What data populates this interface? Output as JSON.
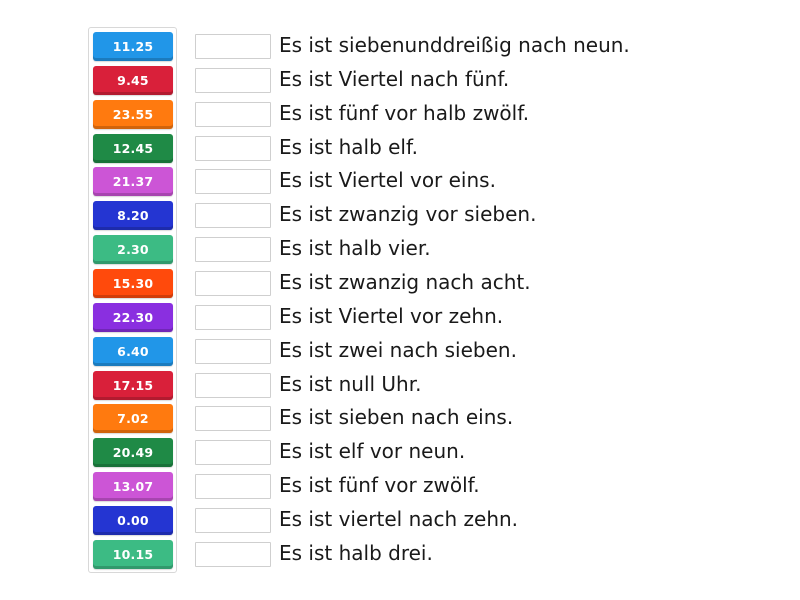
{
  "tiles": [
    {
      "label": "11.25",
      "color": "#2196e8"
    },
    {
      "label": "9.45",
      "color": "#d9203a"
    },
    {
      "label": "23.55",
      "color": "#ff7a0f"
    },
    {
      "label": "12.45",
      "color": "#1f8a46"
    },
    {
      "label": "21.37",
      "color": "#cc55d6"
    },
    {
      "label": "8.20",
      "color": "#2435d2"
    },
    {
      "label": "2.30",
      "color": "#3cbb84"
    },
    {
      "label": "15.30",
      "color": "#ff4a0c"
    },
    {
      "label": "22.30",
      "color": "#8a2fe0"
    },
    {
      "label": "6.40",
      "color": "#2196e8"
    },
    {
      "label": "17.15",
      "color": "#d9203a"
    },
    {
      "label": "7.02",
      "color": "#ff7a0f"
    },
    {
      "label": "20.49",
      "color": "#1f8a46"
    },
    {
      "label": "13.07",
      "color": "#cc55d6"
    },
    {
      "label": "0.00",
      "color": "#2435d2"
    },
    {
      "label": "10.15",
      "color": "#3cbb84"
    }
  ],
  "sentences": [
    "Es ist siebenunddreißig nach neun.",
    "Es ist Viertel nach fünf.",
    "Es ist fünf vor halb zwölf.",
    "Es ist halb elf.",
    "Es ist Viertel vor eins.",
    "Es ist zwanzig vor sieben.",
    "Es ist halb vier.",
    "Es ist zwanzig nach acht.",
    "Es ist Viertel vor zehn.",
    "Es ist zwei nach sieben.",
    "Es ist null Uhr.",
    "Es ist sieben nach eins.",
    "Es ist elf vor neun.",
    "Es ist fünf vor zwölf.",
    "Es ist viertel nach zehn.",
    "Es ist halb drei."
  ]
}
